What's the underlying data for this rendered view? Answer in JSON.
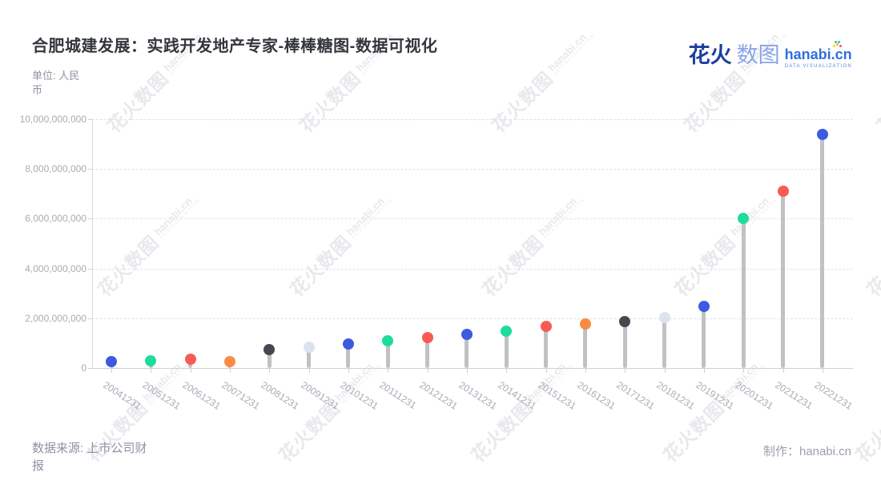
{
  "header": {
    "title": "合肥城建发展：实践开发地产专家-棒棒糖图-数据可视化",
    "unit_label": "单位: 人民币"
  },
  "logo": {
    "brand_cn_bold": "花火",
    "brand_cn_light": "数图",
    "brand_en": "hanabi.cn",
    "brand_sub": "DATA VISUALIZATION"
  },
  "watermark": {
    "text_cn": "花火数图",
    "text_en": "hanabi.cn",
    "text_sub": "DATA VISUALIZATION"
  },
  "footer": {
    "source": "数据来源: 上市公司财报",
    "credit": "制作：hanabi.cn"
  },
  "chart_data": {
    "type": "scatter",
    "subtype": "lollipop",
    "title": "合肥城建发展：实践开发地产专家-棒棒糖图-数据可视化",
    "unit": "单位: 人民币",
    "categories": [
      "20041231",
      "20051231",
      "20061231",
      "20071231",
      "20081231",
      "20091231",
      "20101231",
      "20111231",
      "20121231",
      "20131231",
      "20141231",
      "20151231",
      "20161231",
      "20171231",
      "20181231",
      "20191231",
      "20201231",
      "20211231",
      "20221231"
    ],
    "values": [
      250000000,
      300000000,
      350000000,
      270000000,
      750000000,
      840000000,
      980000000,
      1100000000,
      1220000000,
      1350000000,
      1490000000,
      1660000000,
      1760000000,
      1870000000,
      2020000000,
      2470000000,
      6000000000,
      7100000000,
      9400000000
    ],
    "point_colors": [
      "#3d5ae0",
      "#1edc9c",
      "#f95a55",
      "#fb8b44",
      "#45484f",
      "#dde2ef",
      "#3d5ae0",
      "#1edc9c",
      "#f95a55",
      "#3d5ae0",
      "#1edc9c",
      "#f95a55",
      "#fb8b44",
      "#45484f",
      "#dde2ef",
      "#3d5ae0",
      "#1edc9c",
      "#f95a55",
      "#3d5ae0"
    ],
    "stem_color": "#c0c1c3",
    "ylim": [
      0,
      10000000000
    ],
    "ytick_labels": [
      "0",
      "2,000,000,000",
      "4,000,000,000",
      "6,000,000,000",
      "8,000,000,000",
      "10,000,000,000"
    ],
    "grid": "horizontal-dashed",
    "legend": "none",
    "xlabel_rotation_deg": 33
  }
}
